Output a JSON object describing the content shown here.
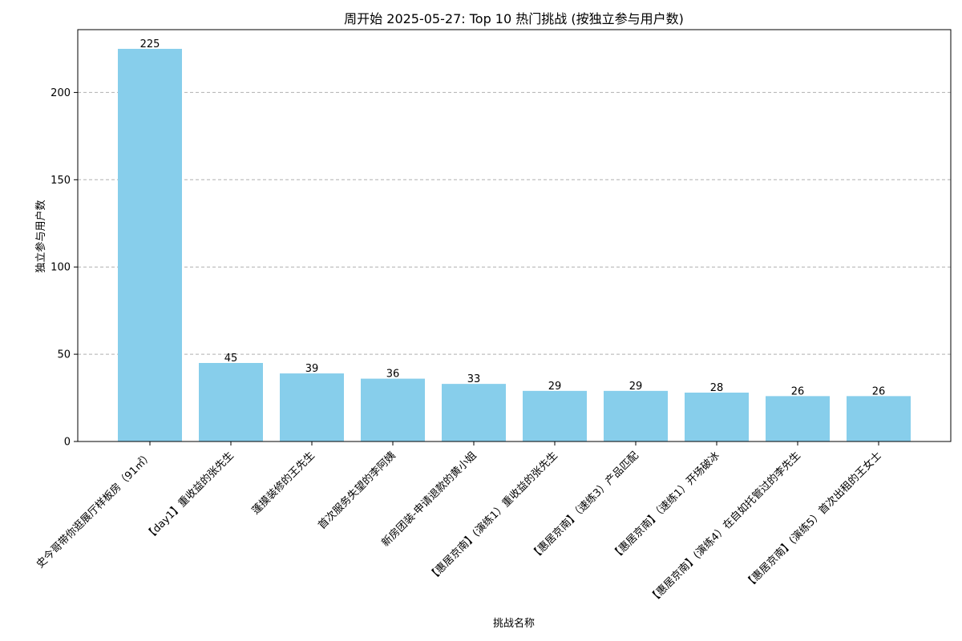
{
  "chart_data": {
    "type": "bar",
    "title": "周开始 2025-05-27: Top 10 热门挑战 (按独立参与用户数)",
    "xlabel": "挑战名称",
    "ylabel": "独立参与用户数",
    "categories": [
      "史今哥带你逛展厅样板房（91㎡）",
      "【day1】重收益的张先生",
      "蓬摸装修的王先生",
      "首次服务失望的李阿姨",
      "新房团装-申请退款的黄小姐",
      "【惠居京南】(演练1）重收益的张先生",
      "【惠居京南】（速练3）产品匹配",
      "【惠居京南】（速练1）开场破冰",
      "【惠居京南】(演练4）在自如托管过的李先生",
      "【惠居京南】(演练5）首次出租的王女士"
    ],
    "values": [
      225,
      45,
      39,
      36,
      33,
      29,
      29,
      28,
      26,
      26
    ],
    "value_labels": [
      "225",
      "45",
      "39",
      "36",
      "33",
      "29",
      "29",
      "28",
      "26",
      "26"
    ],
    "ylim": [
      0,
      236
    ],
    "yticks": [
      0,
      50,
      100,
      150,
      200
    ],
    "ytick_labels": [
      "0",
      "50",
      "100",
      "150",
      "200"
    ],
    "grid": "y-dashed",
    "bar_color": "#87CEEB"
  }
}
